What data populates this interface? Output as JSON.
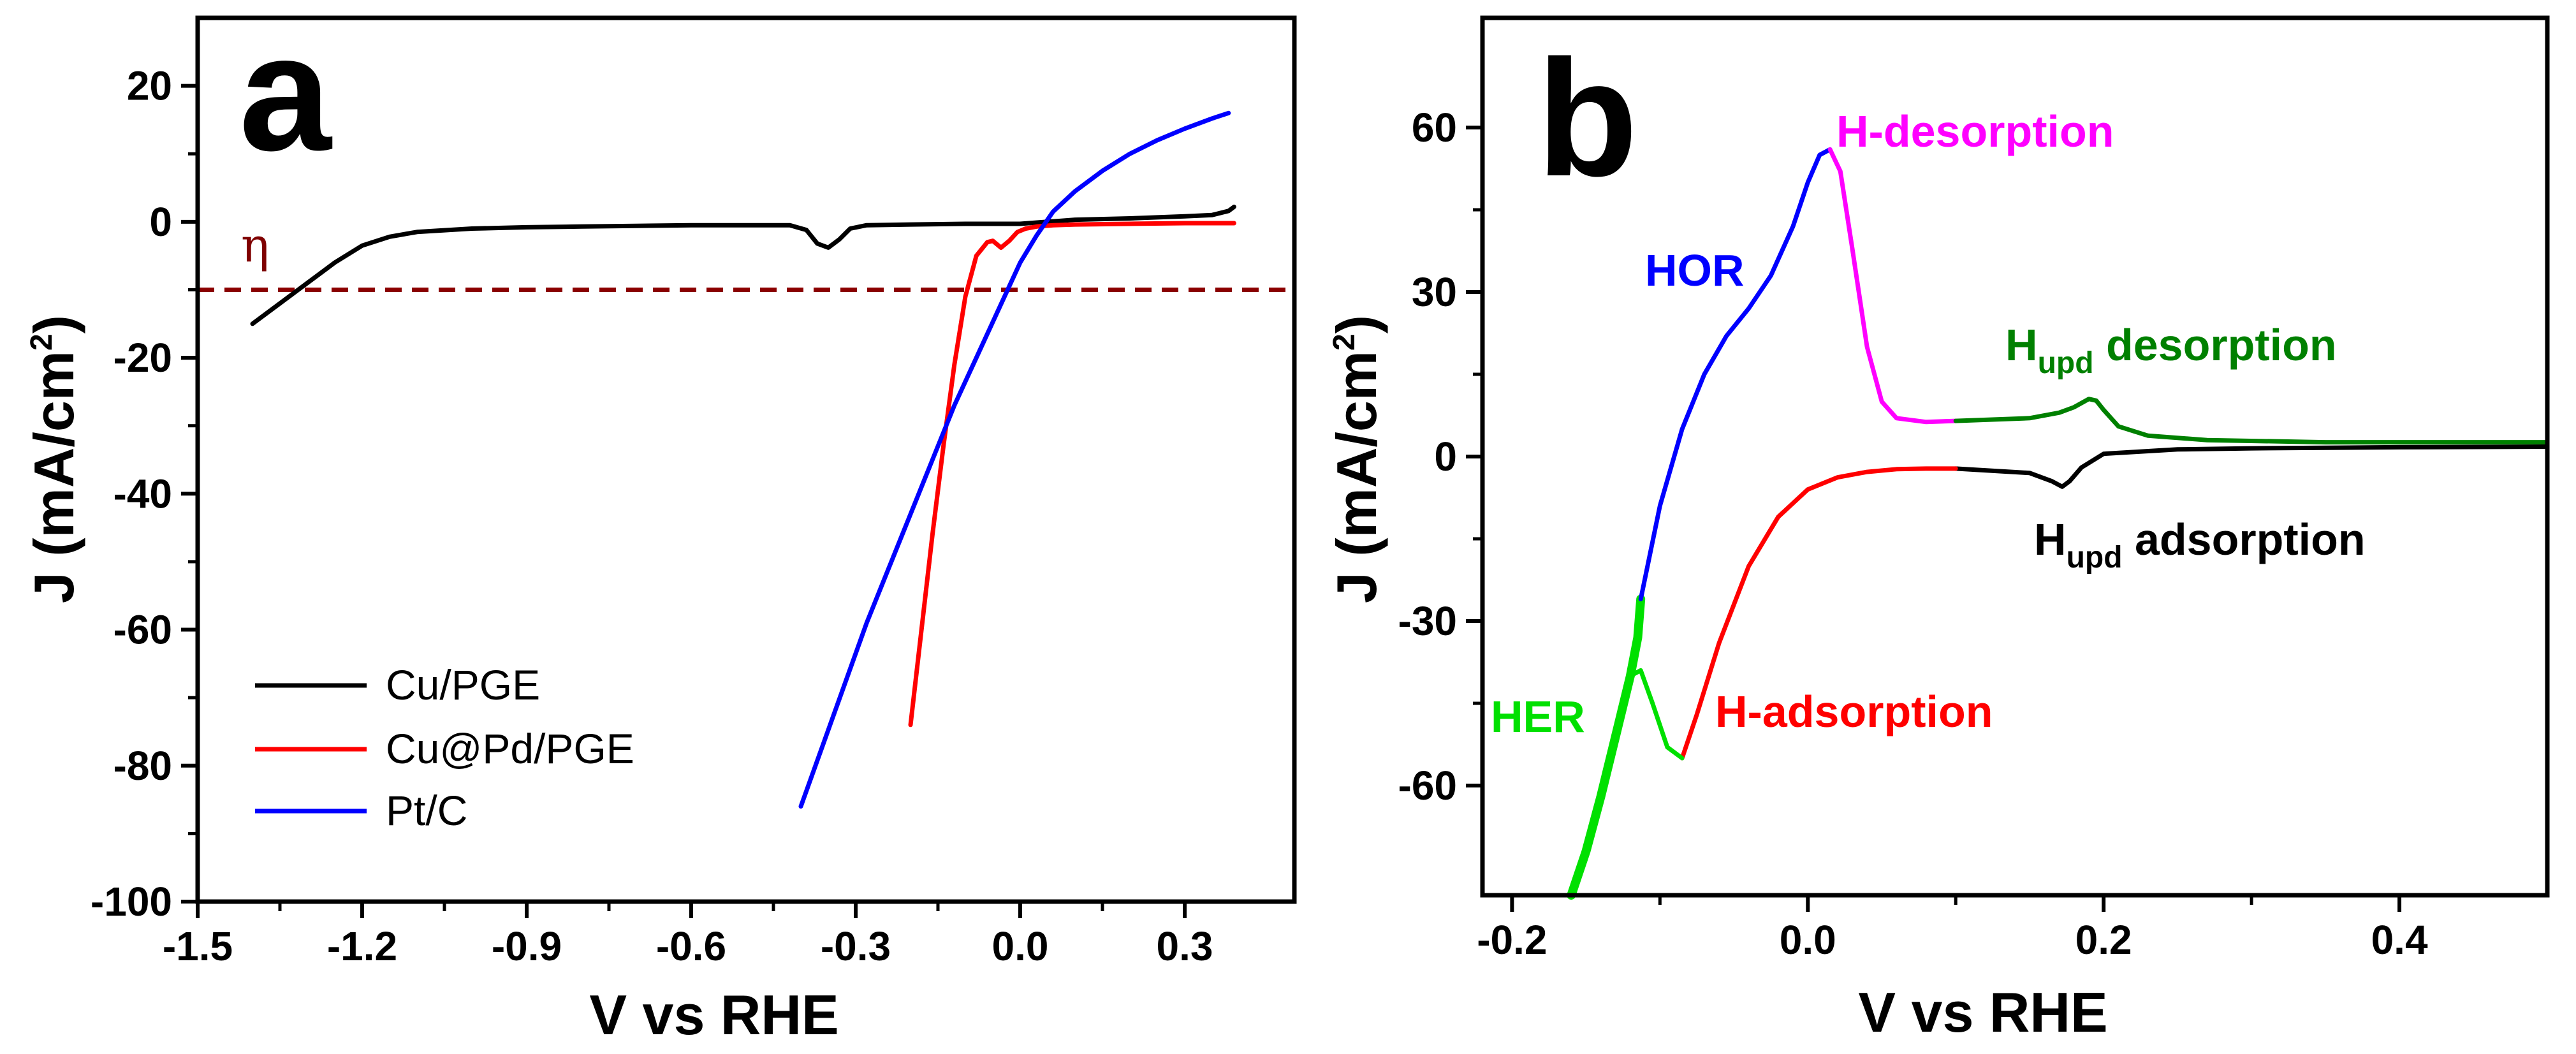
{
  "chart_data": [
    {
      "type": "line",
      "panel_label": "a",
      "xlabel": "V vs RHE",
      "ylabel_main": "J (mA/cm",
      "ylabel_sup": "2",
      "ylabel_close": ")",
      "xlim": [
        -1.5,
        0.5
      ],
      "ylim": [
        -100,
        30
      ],
      "xticks": [
        -1.5,
        -1.2,
        -0.9,
        -0.6,
        -0.3,
        0.0,
        0.3
      ],
      "xtick_labels": [
        "-1.5",
        "-1.2",
        "-0.9",
        "-0.6",
        "-0.3",
        "0.0",
        "0.3"
      ],
      "yticks": [
        -100,
        -80,
        -60,
        -40,
        -20,
        0,
        20
      ],
      "ytick_labels": [
        "-100",
        "-80",
        "-60",
        "-40",
        "-20",
        "0",
        "20"
      ],
      "reference_line": {
        "label": "η",
        "y": -10,
        "color": "#8b0000"
      },
      "legend_position": "bottom-left",
      "series": [
        {
          "name": "Cu/PGE",
          "color": "#000000",
          "x": [
            -1.4,
            -1.35,
            -1.3,
            -1.25,
            -1.2,
            -1.15,
            -1.1,
            -1.0,
            -0.9,
            -0.8,
            -0.7,
            -0.6,
            -0.5,
            -0.42,
            -0.39,
            -0.37,
            -0.35,
            -0.33,
            -0.31,
            -0.28,
            -0.2,
            -0.1,
            0.0,
            0.05,
            0.1,
            0.2,
            0.3,
            0.35,
            0.38,
            0.39
          ],
          "y": [
            -15,
            -12,
            -9,
            -6,
            -3.5,
            -2.2,
            -1.5,
            -1.0,
            -0.8,
            -0.7,
            -0.6,
            -0.5,
            -0.5,
            -0.5,
            -1.2,
            -3.2,
            -3.8,
            -2.6,
            -1.0,
            -0.5,
            -0.4,
            -0.3,
            -0.3,
            0.0,
            0.3,
            0.5,
            0.8,
            1.0,
            1.6,
            2.2
          ]
        },
        {
          "name": "Cu@Pd/PGE",
          "color": "#ff0000",
          "x": [
            -0.2,
            -0.18,
            -0.16,
            -0.14,
            -0.12,
            -0.1,
            -0.08,
            -0.06,
            -0.05,
            -0.035,
            -0.02,
            -0.005,
            0.01,
            0.03,
            0.06,
            0.1,
            0.2,
            0.3,
            0.39
          ],
          "y": [
            -74,
            -60,
            -46,
            -33,
            -21,
            -11,
            -5,
            -3,
            -2.8,
            -3.8,
            -2.8,
            -1.5,
            -1.0,
            -0.7,
            -0.5,
            -0.4,
            -0.3,
            -0.2,
            -0.2
          ]
        },
        {
          "name": "Pt/C",
          "color": "#0000ff",
          "x": [
            -0.4,
            -0.36,
            -0.32,
            -0.28,
            -0.24,
            -0.2,
            -0.16,
            -0.12,
            -0.08,
            -0.04,
            0.0,
            0.03,
            0.06,
            0.1,
            0.15,
            0.2,
            0.25,
            0.3,
            0.35,
            0.38
          ],
          "y": [
            -86,
            -77,
            -68,
            -59,
            -51,
            -43,
            -35,
            -27,
            -20,
            -13,
            -6,
            -2,
            1.5,
            4.5,
            7.5,
            10,
            12,
            13.7,
            15.2,
            16
          ]
        }
      ]
    },
    {
      "type": "line",
      "panel_label": "b",
      "xlabel": "V vs RHE",
      "ylabel_main": "J (mA/cm",
      "ylabel_sup": "2",
      "ylabel_close": ")",
      "xlim": [
        -0.22,
        0.5
      ],
      "ylim": [
        -80,
        80
      ],
      "xticks": [
        -0.2,
        0.0,
        0.2,
        0.4
      ],
      "xtick_labels": [
        "-0.2",
        "0.0",
        "0.2",
        "0.4"
      ],
      "yticks": [
        -60,
        -30,
        0,
        30,
        60
      ],
      "ytick_labels": [
        "-60",
        "-30",
        "0",
        "30",
        "60"
      ],
      "annotations": [
        {
          "text": "H-desorption",
          "color": "#ff00ff"
        },
        {
          "text": "HOR",
          "color": "#0000ff"
        },
        {
          "text": "H",
          "sub": "upd",
          "rest": " desorption",
          "color": "#008000"
        },
        {
          "text": "H",
          "sub": "upd",
          "rest": " adsorption",
          "color": "#000000"
        },
        {
          "text": "HER",
          "color": "#00e000"
        },
        {
          "text": "H-adsorption",
          "color": "#ff0000"
        }
      ],
      "series": [
        {
          "name": "HER",
          "color": "#00e000",
          "x": [
            -0.16,
            -0.15,
            -0.14,
            -0.13,
            -0.12,
            -0.115,
            -0.113
          ],
          "y": [
            -80,
            -72,
            -62,
            -51,
            -40,
            -33,
            -26
          ]
        },
        {
          "name": "HOR",
          "color": "#0000ff",
          "x": [
            -0.113,
            -0.1,
            -0.085,
            -0.07,
            -0.055,
            -0.04,
            -0.025,
            -0.01,
            0.0,
            0.008,
            0.015
          ],
          "y": [
            -26,
            -9,
            5,
            15,
            22,
            27,
            33,
            42,
            50,
            55,
            56
          ]
        },
        {
          "name": "H-desorption",
          "color": "#ff00ff",
          "x": [
            0.015,
            0.022,
            0.03,
            0.04,
            0.05,
            0.06,
            0.08,
            0.1
          ],
          "y": [
            56,
            52,
            38,
            20,
            10,
            7,
            6.3,
            6.5
          ]
        },
        {
          "name": "Hupd desorption",
          "color": "#008000",
          "x": [
            0.1,
            0.15,
            0.17,
            0.18,
            0.19,
            0.195,
            0.2,
            0.21,
            0.23,
            0.27,
            0.35,
            0.45,
            0.5
          ],
          "y": [
            6.5,
            7,
            8,
            9,
            10.5,
            10.2,
            8.5,
            5.5,
            3.8,
            3.0,
            2.6,
            2.6,
            2.6
          ]
        },
        {
          "name": "Hupd adsorption",
          "color": "#000000",
          "x": [
            0.1,
            0.15,
            0.165,
            0.172,
            0.177,
            0.185,
            0.2,
            0.25,
            0.3,
            0.4,
            0.5
          ],
          "y": [
            -2.2,
            -3.0,
            -4.5,
            -5.5,
            -4.5,
            -2.0,
            0.5,
            1.3,
            1.5,
            1.7,
            1.8
          ]
        },
        {
          "name": "H-adsorption",
          "color": "#ff0000",
          "x": [
            0.1,
            0.08,
            0.06,
            0.04,
            0.02,
            0.0,
            -0.02,
            -0.04,
            -0.06,
            -0.075,
            -0.085
          ],
          "y": [
            -2.2,
            -2.2,
            -2.3,
            -2.8,
            -3.8,
            -6,
            -11,
            -20,
            -34,
            -47,
            -55
          ]
        },
        {
          "name": "H-adsorption-loop",
          "color": "#00e000",
          "x": [
            -0.085,
            -0.095,
            -0.105,
            -0.113,
            -0.12,
            -0.127,
            -0.133,
            -0.138
          ],
          "y": [
            -55,
            -53,
            -45,
            -39,
            -40,
            -46,
            -54,
            -60
          ]
        }
      ]
    }
  ],
  "legend": [
    {
      "label": "Cu/PGE",
      "color": "#000000"
    },
    {
      "label": "Cu@Pd/PGE",
      "color": "#ff0000"
    },
    {
      "label": "Pt/C",
      "color": "#0000ff"
    }
  ]
}
